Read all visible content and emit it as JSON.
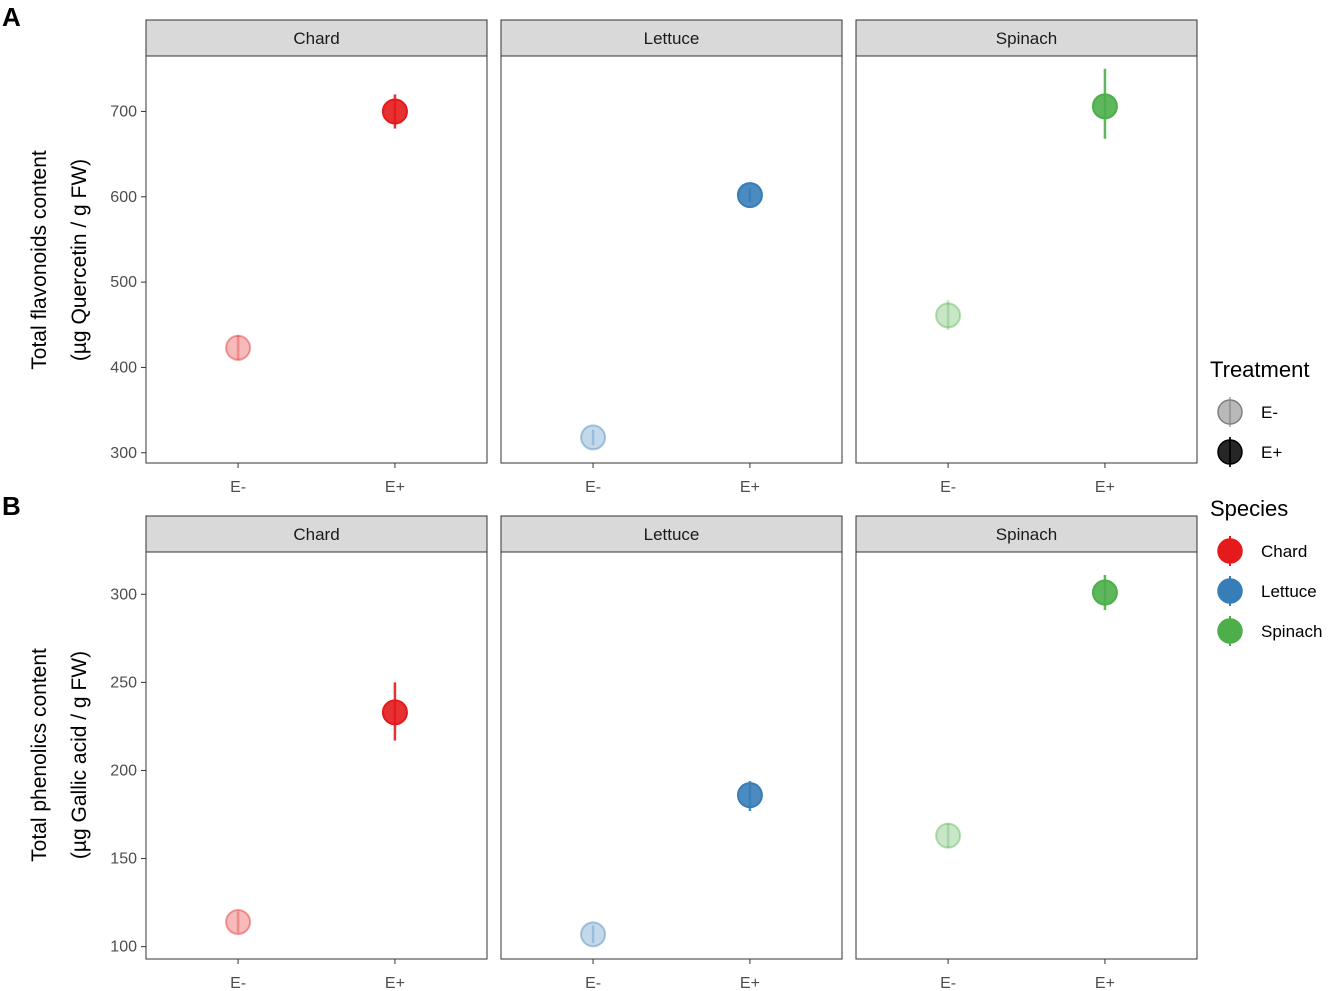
{
  "figure": {
    "panel_tags": [
      "A",
      "B"
    ],
    "legend": {
      "treatment_title": "Treatment",
      "treatment_items": [
        {
          "label": "E-",
          "color": "#7f7f7f",
          "alpha": 0.55
        },
        {
          "label": "E+",
          "color": "#000000",
          "alpha": 0.85
        }
      ],
      "species_title": "Species",
      "species_items": [
        {
          "label": "Chard",
          "color": "#e41a1c"
        },
        {
          "label": "Lettuce",
          "color": "#377eb8"
        },
        {
          "label": "Spinach",
          "color": "#4daf4a"
        }
      ]
    }
  },
  "chart_data": [
    {
      "type": "scatter",
      "panel": "A",
      "ylabel_line1": "Total flavonoids content",
      "ylabel_line2": "(µg Quercetin / g FW)",
      "ylim": [
        288,
        765
      ],
      "yticks": [
        300,
        400,
        500,
        600,
        700
      ],
      "categories": [
        "E-",
        "E+"
      ],
      "facets": [
        {
          "name": "Chard",
          "color": "#e41a1c",
          "points": [
            {
              "x": "E-",
              "y": 423,
              "ymin": 408,
              "ymax": 438,
              "alpha": 0.3
            },
            {
              "x": "E+",
              "y": 700,
              "ymin": 680,
              "ymax": 720,
              "alpha": 0.9
            }
          ]
        },
        {
          "name": "Lettuce",
          "color": "#377eb8",
          "points": [
            {
              "x": "E-",
              "y": 318,
              "ymin": 309,
              "ymax": 327,
              "alpha": 0.3
            },
            {
              "x": "E+",
              "y": 602,
              "ymin": 594,
              "ymax": 610,
              "alpha": 0.9
            }
          ]
        },
        {
          "name": "Spinach",
          "color": "#4daf4a",
          "points": [
            {
              "x": "E-",
              "y": 461,
              "ymin": 444,
              "ymax": 479,
              "alpha": 0.3
            },
            {
              "x": "E+",
              "y": 706,
              "ymin": 668,
              "ymax": 750,
              "alpha": 0.9
            }
          ]
        }
      ]
    },
    {
      "type": "scatter",
      "panel": "B",
      "ylabel_line1": "Total phenolics content",
      "ylabel_line2": "(µg Gallic acid / g FW)",
      "ylim": [
        93,
        324
      ],
      "yticks": [
        100,
        150,
        200,
        250,
        300
      ],
      "categories": [
        "E-",
        "E+"
      ],
      "facets": [
        {
          "name": "Chard",
          "color": "#e41a1c",
          "points": [
            {
              "x": "E-",
              "y": 114,
              "ymin": 108,
              "ymax": 120,
              "alpha": 0.3
            },
            {
              "x": "E+",
              "y": 233,
              "ymin": 217,
              "ymax": 250,
              "alpha": 0.9
            }
          ]
        },
        {
          "name": "Lettuce",
          "color": "#377eb8",
          "points": [
            {
              "x": "E-",
              "y": 107,
              "ymin": 102,
              "ymax": 112,
              "alpha": 0.3
            },
            {
              "x": "E+",
              "y": 186,
              "ymin": 177,
              "ymax": 194,
              "alpha": 0.9
            }
          ]
        },
        {
          "name": "Spinach",
          "color": "#4daf4a",
          "points": [
            {
              "x": "E-",
              "y": 163,
              "ymin": 156,
              "ymax": 170,
              "alpha": 0.3
            },
            {
              "x": "E+",
              "y": 301,
              "ymin": 291,
              "ymax": 311,
              "alpha": 0.9
            }
          ]
        }
      ]
    }
  ]
}
